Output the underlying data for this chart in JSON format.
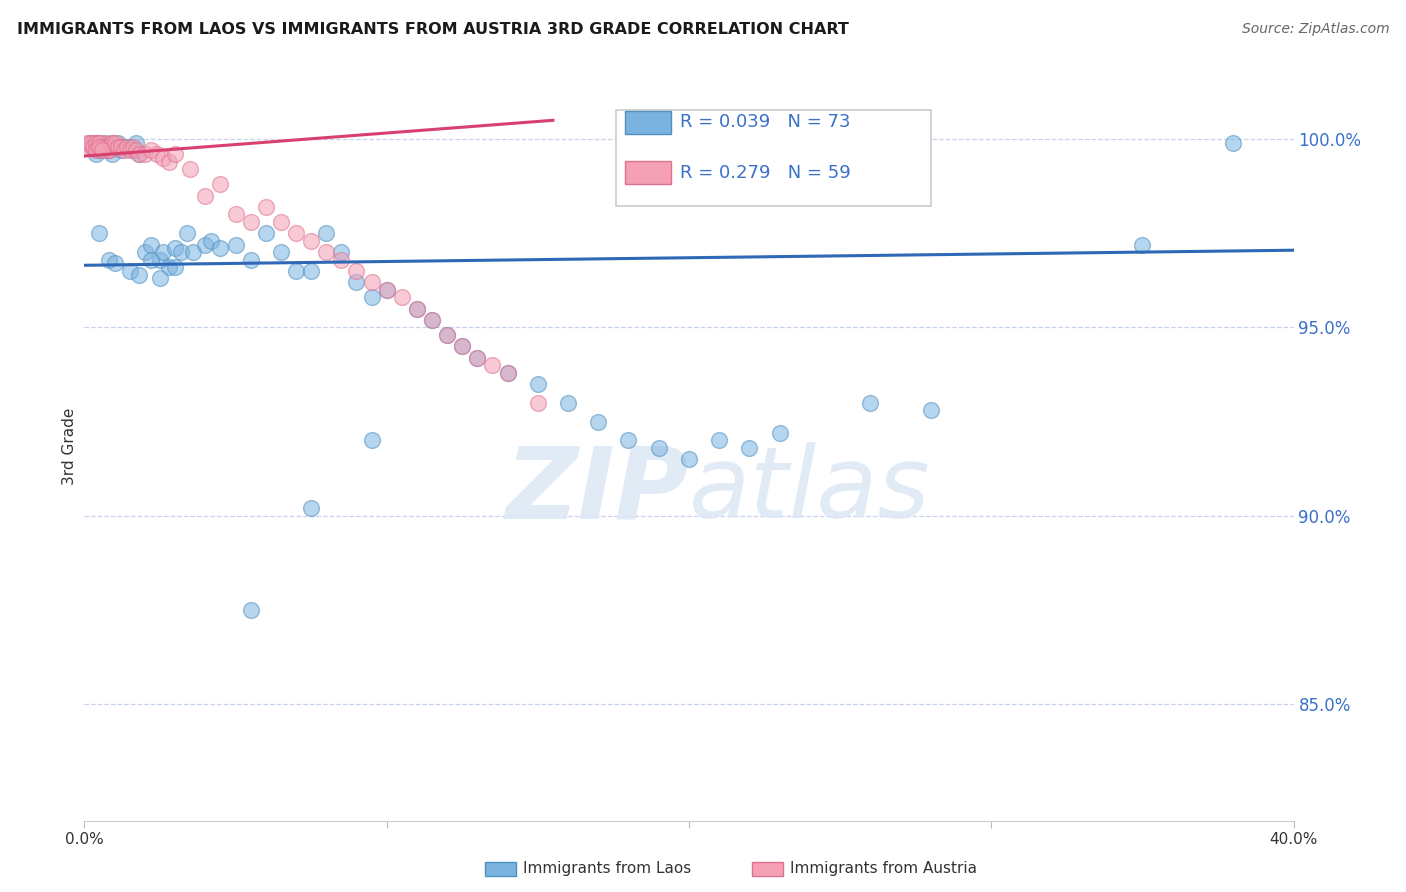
{
  "title": "IMMIGRANTS FROM LAOS VS IMMIGRANTS FROM AUSTRIA 3RD GRADE CORRELATION CHART",
  "source": "Source: ZipAtlas.com",
  "ylabel": "3rd Grade",
  "ytick_labels": [
    "100.0%",
    "95.0%",
    "90.0%",
    "85.0%"
  ],
  "ytick_values": [
    1.0,
    0.95,
    0.9,
    0.85
  ],
  "xmin": 0.0,
  "xmax": 0.4,
  "ymin": 0.819,
  "ymax": 1.018,
  "legend_blue_r": "0.039",
  "legend_blue_n": "73",
  "legend_pink_r": "0.279",
  "legend_pink_n": "59",
  "blue_color": "#7ab3e0",
  "pink_color": "#f4a0b5",
  "blue_edge_color": "#5090c0",
  "pink_edge_color": "#e07090",
  "blue_line_color": "#3068b8",
  "pink_line_color": "#d84070",
  "watermark_color": "#dce8f5",
  "blue_line_x": [
    0.0,
    0.4
  ],
  "blue_line_y": [
    0.9665,
    0.9705
  ],
  "pink_line_x": [
    0.0,
    0.155
  ],
  "pink_line_y": [
    0.9955,
    1.005
  ],
  "blue_x": [
    0.002,
    0.003,
    0.004,
    0.005,
    0.006,
    0.007,
    0.008,
    0.009,
    0.01,
    0.011,
    0.012,
    0.013,
    0.004,
    0.005,
    0.006,
    0.007,
    0.015,
    0.016,
    0.017,
    0.018,
    0.02,
    0.022,
    0.025,
    0.026,
    0.028,
    0.03,
    0.032,
    0.034,
    0.036,
    0.04,
    0.042,
    0.045,
    0.05,
    0.055,
    0.06,
    0.065,
    0.07,
    0.075,
    0.08,
    0.085,
    0.09,
    0.095,
    0.1,
    0.11,
    0.115,
    0.12,
    0.125,
    0.13,
    0.14,
    0.15,
    0.16,
    0.17,
    0.18,
    0.19,
    0.2,
    0.21,
    0.22,
    0.23,
    0.26,
    0.28,
    0.35,
    0.38,
    0.005,
    0.008,
    0.01,
    0.015,
    0.018,
    0.022,
    0.025,
    0.03,
    0.055,
    0.075,
    0.095
  ],
  "blue_y": [
    0.999,
    0.998,
    0.996,
    0.997,
    0.998,
    0.999,
    0.997,
    0.996,
    0.998,
    0.999,
    0.997,
    0.998,
    0.999,
    0.998,
    0.997,
    0.998,
    0.998,
    0.997,
    0.999,
    0.996,
    0.97,
    0.972,
    0.968,
    0.97,
    0.966,
    0.971,
    0.97,
    0.975,
    0.97,
    0.972,
    0.973,
    0.971,
    0.972,
    0.968,
    0.975,
    0.97,
    0.965,
    0.965,
    0.975,
    0.97,
    0.962,
    0.958,
    0.96,
    0.955,
    0.952,
    0.948,
    0.945,
    0.942,
    0.938,
    0.935,
    0.93,
    0.925,
    0.92,
    0.918,
    0.915,
    0.92,
    0.918,
    0.922,
    0.93,
    0.928,
    0.972,
    0.999,
    0.975,
    0.968,
    0.967,
    0.965,
    0.964,
    0.968,
    0.963,
    0.966,
    0.875,
    0.902,
    0.92
  ],
  "pink_x": [
    0.001,
    0.002,
    0.003,
    0.004,
    0.005,
    0.006,
    0.007,
    0.008,
    0.009,
    0.01,
    0.002,
    0.003,
    0.004,
    0.005,
    0.006,
    0.007,
    0.008,
    0.009,
    0.01,
    0.011,
    0.012,
    0.013,
    0.004,
    0.005,
    0.006,
    0.014,
    0.015,
    0.016,
    0.017,
    0.018,
    0.02,
    0.022,
    0.024,
    0.026,
    0.028,
    0.03,
    0.035,
    0.04,
    0.045,
    0.05,
    0.055,
    0.06,
    0.065,
    0.07,
    0.075,
    0.08,
    0.085,
    0.09,
    0.095,
    0.1,
    0.105,
    0.11,
    0.115,
    0.12,
    0.125,
    0.13,
    0.135,
    0.14,
    0.15
  ],
  "pink_y": [
    0.999,
    0.998,
    0.999,
    0.998,
    0.999,
    0.999,
    0.998,
    0.997,
    0.999,
    0.998,
    0.999,
    0.998,
    0.999,
    0.999,
    0.998,
    0.998,
    0.997,
    0.999,
    0.999,
    0.998,
    0.998,
    0.997,
    0.997,
    0.998,
    0.997,
    0.998,
    0.997,
    0.998,
    0.997,
    0.996,
    0.996,
    0.997,
    0.996,
    0.995,
    0.994,
    0.996,
    0.992,
    0.985,
    0.988,
    0.98,
    0.978,
    0.982,
    0.978,
    0.975,
    0.973,
    0.97,
    0.968,
    0.965,
    0.962,
    0.96,
    0.958,
    0.955,
    0.952,
    0.948,
    0.945,
    0.942,
    0.94,
    0.938,
    0.93
  ]
}
